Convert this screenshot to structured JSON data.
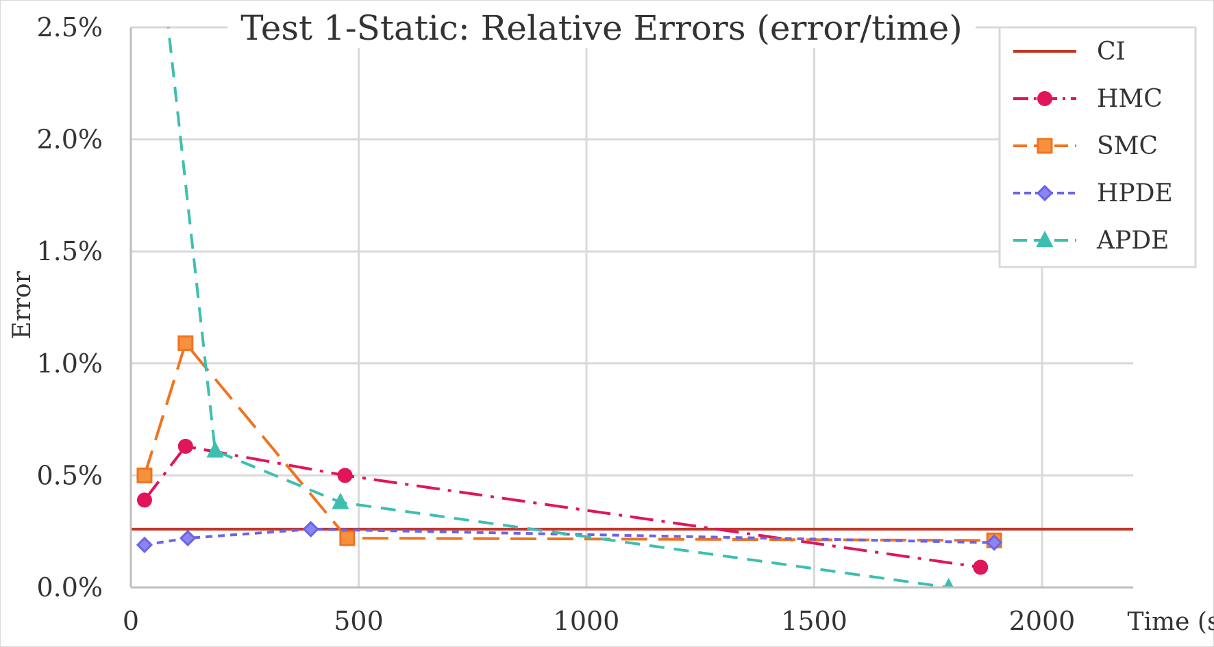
{
  "chart_data": {
    "type": "line",
    "title": "Test 1-Static: Relative Errors (error/time)",
    "xlabel": "Time (s)",
    "ylabel": "Error",
    "xlim": [
      0,
      2200
    ],
    "ylim": [
      0,
      2.5
    ],
    "x_ticks": [
      0,
      500,
      1000,
      1500,
      2000
    ],
    "y_ticks": [
      0,
      0.5,
      1.0,
      1.5,
      2.0,
      2.5
    ],
    "x_tick_labels": [
      "0",
      "500",
      "1000",
      "1500",
      "2000"
    ],
    "y_tick_labels": [
      "0.0%",
      "0.5%",
      "1.0%",
      "1.5%",
      "2.0%",
      "2.5%"
    ],
    "grid": true,
    "legend_position": "top-right",
    "series": [
      {
        "name": "CI",
        "color": "#c0392b",
        "line": "solid",
        "marker": "none",
        "x": [
          0,
          2200
        ],
        "y": [
          0.26,
          0.26
        ]
      },
      {
        "name": "HMC",
        "color": "#e0155a",
        "line": "dash-dot",
        "marker": "circle",
        "x": [
          30,
          120,
          470,
          1865
        ],
        "y": [
          0.39,
          0.63,
          0.5,
          0.09
        ]
      },
      {
        "name": "SMC",
        "color": "#f0731f",
        "line": "long-dash",
        "marker": "square",
        "x": [
          30,
          120,
          475,
          1895
        ],
        "y": [
          0.5,
          1.09,
          0.22,
          0.21
        ]
      },
      {
        "name": "HPDE",
        "color": "#6b63e8",
        "line": "dotted",
        "marker": "diamond",
        "x": [
          30,
          125,
          395,
          1895
        ],
        "y": [
          0.19,
          0.22,
          0.26,
          0.2
        ]
      },
      {
        "name": "APDE",
        "color": "#3dbfb0",
        "line": "dashed",
        "marker": "triangle",
        "x": [
          55,
          185,
          460,
          1795
        ],
        "y": [
          3.0,
          0.61,
          0.38,
          0.0
        ]
      }
    ]
  }
}
